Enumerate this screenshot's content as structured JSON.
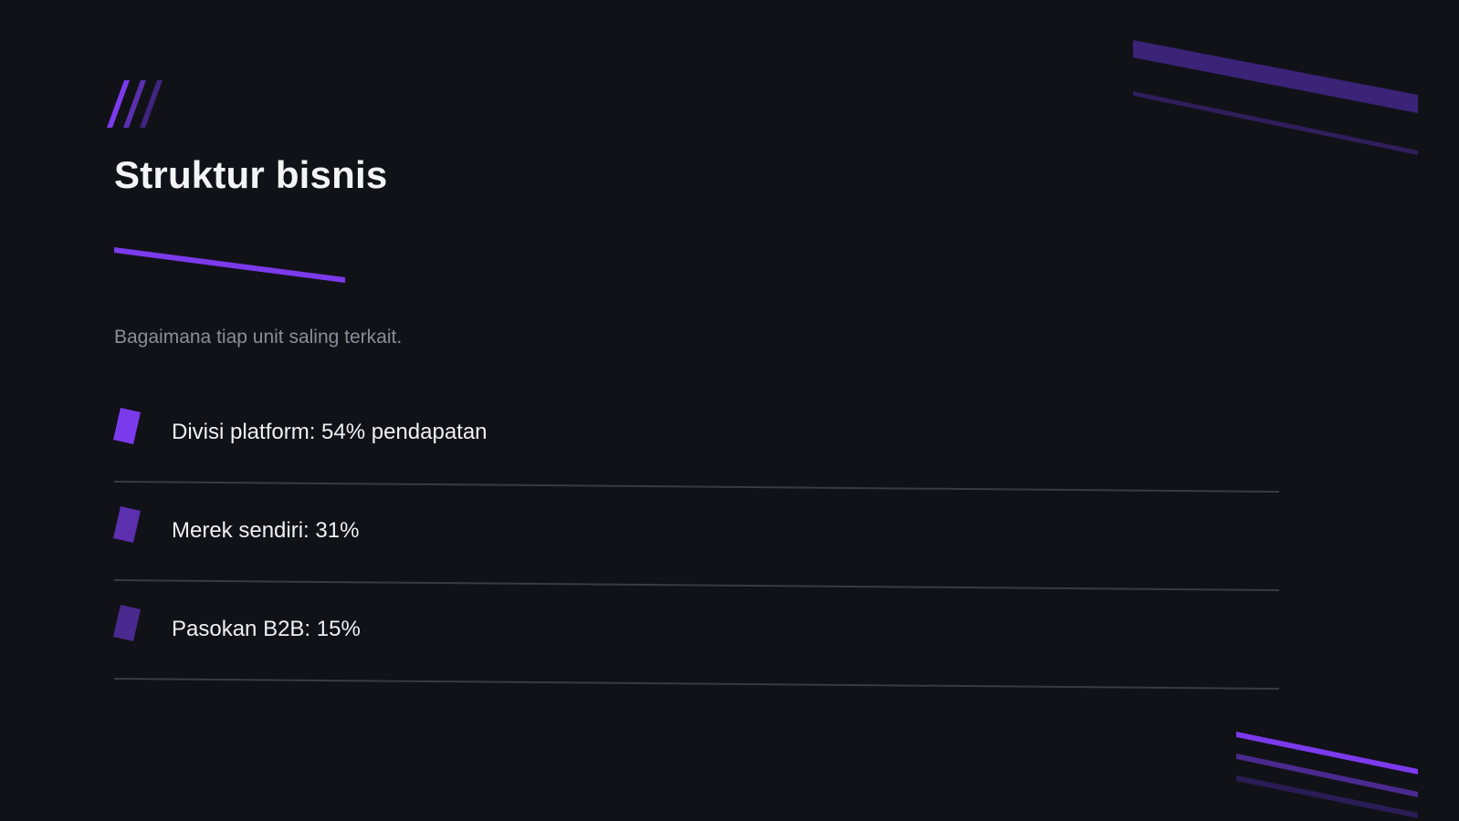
{
  "slide": {
    "title": "Struktur bisnis",
    "subtitle": "Bagaimana tiap unit saling terkait.",
    "items": [
      {
        "label": "Divisi platform: 54% pendapatan",
        "marker_color": "#7c3aed"
      },
      {
        "label": "Merek sendiri: 31%",
        "marker_color": "#5b2fae"
      },
      {
        "label": "Pasokan B2B: 15%",
        "marker_color": "#4b2a8f"
      }
    ]
  },
  "colors": {
    "background": "#111218",
    "accent": "#7c3aed",
    "accent_mid": "#5b2fae",
    "accent_dark": "#3b2378",
    "divider": "#3a3b42",
    "title_text": "#f4f4f6",
    "subtitle_text": "#8c8c99",
    "item_text": "#f0f0f2"
  }
}
